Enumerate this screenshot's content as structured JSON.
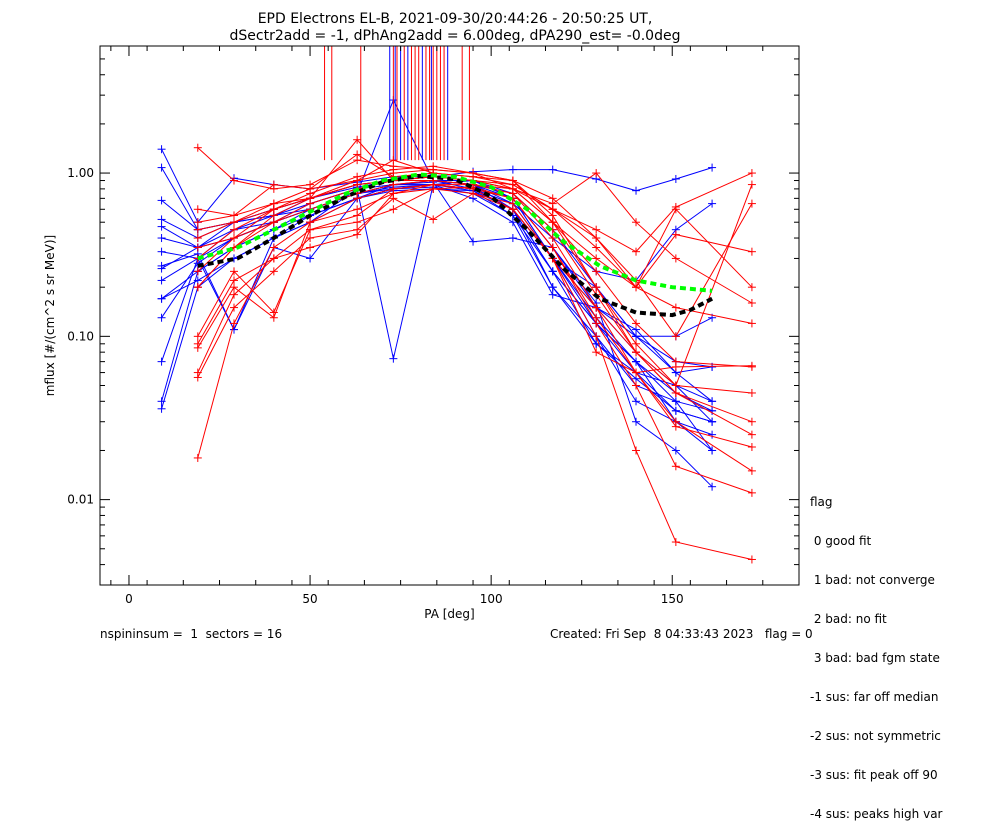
{
  "chart_data": {
    "type": "line",
    "title_lines": [
      "EPD Electrons EL-B, 2021-09-30/20:44:26 - 20:50:25 UT,",
      "dSectr2add = -1, dPhAng2add = 6.00deg, dPA290_est=  -0.0deg"
    ],
    "xlabel": "PA [deg]",
    "ylabel": "mflux [#/(cm^2 s sr MeV)]",
    "xlim": [
      -8,
      185
    ],
    "ylim": [
      0.003,
      6.0
    ],
    "yscale": "log",
    "x_ticks": [
      0,
      50,
      100,
      150
    ],
    "x_tick_labels": [
      "0",
      "50",
      "100",
      "150"
    ],
    "y_ticks": [
      0.01,
      0.1,
      1.0
    ],
    "y_tick_labels": [
      "0.01",
      "0.10",
      "1.00"
    ],
    "colors": {
      "red": "#ff0000",
      "blue": "#0000ff",
      "green": "#00ff00",
      "black": "#000000"
    },
    "series": [
      {
        "color": "#0000ff",
        "x": [
          9,
          19,
          29,
          40,
          50,
          63,
          73,
          84,
          95,
          106,
          117,
          129,
          140,
          151,
          161
        ],
        "y": [
          1.4,
          0.5,
          0.93,
          0.85,
          0.8,
          0.88,
          0.95,
          0.95,
          1.02,
          1.05,
          1.05,
          0.92,
          0.78,
          0.92,
          1.08
        ]
      },
      {
        "color": "#0000ff",
        "x": [
          9,
          19,
          29,
          40,
          50,
          63,
          73,
          84,
          95,
          106,
          117,
          129,
          140,
          151,
          161
        ],
        "y": [
          0.47,
          0.35,
          0.5,
          0.55,
          0.6,
          0.75,
          2.8,
          0.9,
          0.8,
          0.6,
          0.3,
          0.1,
          0.05,
          0.04,
          0.035
        ]
      },
      {
        "color": "#0000ff",
        "x": [
          9,
          19,
          29,
          40,
          50,
          63,
          73,
          84,
          95,
          106,
          117,
          129,
          140,
          151,
          161
        ],
        "y": [
          0.07,
          0.3,
          0.11,
          0.4,
          0.5,
          0.8,
          0.073,
          0.85,
          0.9,
          0.7,
          0.3,
          0.12,
          0.06,
          0.05,
          0.03
        ]
      },
      {
        "color": "#0000ff",
        "x": [
          9,
          19,
          29,
          40,
          50,
          63,
          73,
          84,
          95,
          106,
          117,
          129,
          140,
          151,
          161
        ],
        "y": [
          0.17,
          0.22,
          0.3,
          0.4,
          0.55,
          0.7,
          0.85,
          0.88,
          0.38,
          0.4,
          0.35,
          0.16,
          0.03,
          0.02,
          0.012
        ]
      },
      {
        "color": "#0000ff",
        "x": [
          9,
          19,
          29,
          40,
          50,
          63,
          73,
          84,
          95,
          106,
          117,
          129,
          140,
          151,
          161
        ],
        "y": [
          0.04,
          0.25,
          0.35,
          0.45,
          0.6,
          0.75,
          0.85,
          0.85,
          0.78,
          0.6,
          0.25,
          0.12,
          0.07,
          0.03,
          0.025
        ]
      },
      {
        "color": "#0000ff",
        "x": [
          9,
          19,
          29,
          40,
          50,
          63,
          73,
          84,
          95,
          106,
          117,
          129,
          140,
          151,
          161
        ],
        "y": [
          0.036,
          0.2,
          0.3,
          0.4,
          0.5,
          0.7,
          0.8,
          0.82,
          0.75,
          0.55,
          0.2,
          0.09,
          0.055,
          0.035,
          0.03
        ]
      },
      {
        "color": "#0000ff",
        "x": [
          9,
          19,
          29,
          40,
          50,
          63,
          73,
          84,
          95,
          106,
          117,
          129,
          140,
          151,
          161
        ],
        "y": [
          0.13,
          0.28,
          0.4,
          0.5,
          0.65,
          0.8,
          0.9,
          0.9,
          0.85,
          0.6,
          0.2,
          0.1,
          0.04,
          0.03,
          0.02
        ]
      },
      {
        "color": "#0000ff",
        "x": [
          9,
          19,
          29,
          40,
          50,
          63,
          73,
          84,
          95,
          106,
          117,
          129,
          140,
          151,
          161
        ],
        "y": [
          0.68,
          0.45,
          0.5,
          0.55,
          0.7,
          0.82,
          0.9,
          0.9,
          0.9,
          0.7,
          0.35,
          0.15,
          0.08,
          0.05,
          0.04
        ]
      },
      {
        "color": "#0000ff",
        "x": [
          9,
          19,
          29,
          40,
          50,
          63,
          73,
          84,
          95,
          106,
          117,
          129,
          140,
          151,
          161
        ],
        "y": [
          0.33,
          0.3,
          0.45,
          0.5,
          0.6,
          0.75,
          0.8,
          0.85,
          0.8,
          0.6,
          0.3,
          0.15,
          0.1,
          0.06,
          0.04
        ]
      },
      {
        "color": "#0000ff",
        "x": [
          9,
          19,
          29,
          40,
          50,
          63,
          73,
          84,
          95,
          106,
          117,
          129,
          140,
          151,
          161
        ],
        "y": [
          0.27,
          0.32,
          0.11,
          0.35,
          0.3,
          0.7,
          0.8,
          0.85,
          0.7,
          0.5,
          0.18,
          0.15,
          0.11,
          0.06,
          0.065
        ]
      },
      {
        "color": "#0000ff",
        "x": [
          9,
          19,
          29,
          40,
          50,
          63,
          73,
          84,
          95,
          106,
          117,
          129,
          140,
          151,
          161
        ],
        "y": [
          0.26,
          0.35,
          0.45,
          0.55,
          0.65,
          0.8,
          0.85,
          0.85,
          0.8,
          0.65,
          0.4,
          0.25,
          0.22,
          0.45,
          0.65
        ]
      },
      {
        "color": "#0000ff",
        "x": [
          9,
          19,
          29,
          40,
          50,
          63,
          73,
          84,
          95,
          106,
          117,
          129,
          140,
          151,
          161
        ],
        "y": [
          0.52,
          0.4,
          0.5,
          0.6,
          0.7,
          0.85,
          0.9,
          0.9,
          0.85,
          0.7,
          0.3,
          0.2,
          0.1,
          0.1,
          0.13
        ]
      },
      {
        "color": "#0000ff",
        "x": [
          9,
          19,
          29,
          40,
          50,
          63,
          73,
          84,
          95,
          106,
          117,
          129,
          140,
          151,
          161
        ],
        "y": [
          0.17,
          0.25,
          0.35,
          0.45,
          0.55,
          0.7,
          0.78,
          0.8,
          0.78,
          0.55,
          0.25,
          0.09,
          0.06,
          0.035,
          0.03
        ]
      },
      {
        "color": "#0000ff",
        "x": [
          9,
          19,
          29,
          40,
          50,
          63,
          73,
          84,
          95,
          106,
          117,
          129,
          140,
          151,
          161
        ],
        "y": [
          1.08,
          0.45,
          0.5,
          0.6,
          0.7,
          0.85,
          0.9,
          0.95,
          0.9,
          0.75,
          0.45,
          0.2,
          0.1,
          0.07,
          0.065
        ]
      },
      {
        "color": "#0000ff",
        "x": [
          9,
          19,
          29,
          40,
          50,
          63,
          73,
          84,
          95,
          106,
          117,
          129,
          140,
          151,
          161
        ],
        "y": [
          0.4,
          0.35,
          0.4,
          0.5,
          0.6,
          0.75,
          0.85,
          0.9,
          0.85,
          0.65,
          0.3,
          0.13,
          0.07,
          0.04,
          0.02
        ]
      },
      {
        "color": "#0000ff",
        "x": [
          9,
          19,
          29,
          40,
          50,
          63,
          73,
          84,
          95,
          106,
          117,
          129,
          140,
          151,
          161
        ],
        "y": [
          0.22,
          0.3,
          0.4,
          0.5,
          0.6,
          0.75,
          0.82,
          0.85,
          0.8,
          0.6,
          0.25,
          0.12,
          0.07,
          0.045,
          0.035
        ]
      },
      {
        "color": "#ff0000",
        "x": [
          19,
          29,
          40,
          50,
          63,
          73,
          84,
          95,
          106,
          117,
          129,
          140,
          151,
          172
        ],
        "y": [
          1.43,
          0.9,
          0.8,
          0.85,
          1.2,
          1.1,
          1.05,
          1.0,
          0.9,
          0.5,
          0.2,
          0.09,
          0.05,
          0.85
        ]
      },
      {
        "color": "#ff0000",
        "x": [
          19,
          29,
          40,
          50,
          63,
          73,
          84,
          95,
          106,
          117,
          129,
          140,
          151,
          172
        ],
        "y": [
          0.018,
          0.12,
          0.35,
          0.5,
          0.7,
          0.8,
          0.85,
          0.8,
          0.6,
          0.3,
          0.15,
          0.08,
          0.05,
          0.045
        ]
      },
      {
        "color": "#ff0000",
        "x": [
          19,
          29,
          40,
          50,
          63,
          73,
          84,
          95,
          106,
          117,
          129,
          140,
          151,
          172
        ],
        "y": [
          0.056,
          0.15,
          0.25,
          0.4,
          0.45,
          0.7,
          0.52,
          0.75,
          0.6,
          0.3,
          0.1,
          0.02,
          0.0055,
          0.0043
        ]
      },
      {
        "color": "#ff0000",
        "x": [
          19,
          29,
          40,
          50,
          63,
          73,
          84,
          95,
          106,
          117,
          129,
          140,
          151,
          172
        ],
        "y": [
          0.085,
          0.2,
          0.13,
          0.5,
          0.6,
          0.75,
          0.85,
          0.8,
          0.7,
          0.35,
          0.12,
          0.05,
          0.016,
          0.011
        ]
      },
      {
        "color": "#ff0000",
        "x": [
          19,
          29,
          40,
          50,
          63,
          73,
          84,
          95,
          106,
          117,
          129,
          140,
          151,
          172
        ],
        "y": [
          0.2,
          0.35,
          0.55,
          0.7,
          1.6,
          0.9,
          0.95,
          0.9,
          0.8,
          0.5,
          0.25,
          0.12,
          0.07,
          0.065
        ]
      },
      {
        "color": "#ff0000",
        "x": [
          19,
          29,
          40,
          50,
          63,
          73,
          84,
          95,
          106,
          117,
          129,
          140,
          151,
          172
        ],
        "y": [
          0.3,
          0.45,
          0.6,
          0.7,
          0.85,
          0.9,
          0.95,
          0.9,
          0.85,
          0.6,
          0.4,
          0.2,
          0.6,
          0.2
        ]
      },
      {
        "color": "#ff0000",
        "x": [
          19,
          29,
          40,
          50,
          63,
          73,
          84,
          95,
          106,
          117,
          129,
          140,
          151,
          172
        ],
        "y": [
          0.5,
          0.55,
          0.85,
          0.8,
          0.9,
          1.0,
          1.05,
          1.0,
          0.9,
          0.55,
          0.2,
          0.08,
          0.045,
          0.025
        ]
      },
      {
        "color": "#ff0000",
        "x": [
          19,
          29,
          40,
          50,
          63,
          73,
          84,
          95,
          106,
          117,
          129,
          140,
          151,
          172
        ],
        "y": [
          0.35,
          0.4,
          0.5,
          0.65,
          0.8,
          0.9,
          0.95,
          0.9,
          0.8,
          0.5,
          0.3,
          0.2,
          0.15,
          0.12
        ]
      },
      {
        "color": "#ff0000",
        "x": [
          19,
          29,
          40,
          50,
          63,
          73,
          84,
          95,
          106,
          117,
          129,
          140,
          151,
          172
        ],
        "y": [
          0.1,
          0.25,
          0.14,
          0.45,
          0.55,
          0.8,
          0.85,
          0.85,
          0.75,
          0.4,
          0.15,
          0.06,
          0.03,
          0.015
        ]
      },
      {
        "color": "#ff0000",
        "x": [
          19,
          29,
          40,
          50,
          63,
          73,
          84,
          95,
          106,
          117,
          129,
          140,
          151,
          172
        ],
        "y": [
          0.06,
          0.18,
          0.3,
          0.35,
          0.42,
          0.75,
          0.8,
          0.82,
          0.7,
          0.35,
          0.13,
          0.06,
          0.028,
          0.021
        ]
      },
      {
        "color": "#ff0000",
        "x": [
          19,
          29,
          40,
          50,
          63,
          73,
          84,
          95,
          106,
          117,
          129,
          140,
          151,
          172
        ],
        "y": [
          0.25,
          0.4,
          0.6,
          0.75,
          0.95,
          1.05,
          1.1,
          1.0,
          0.8,
          0.6,
          0.45,
          0.33,
          0.62,
          1.0
        ]
      },
      {
        "color": "#ff0000",
        "x": [
          19,
          29,
          40,
          50,
          63,
          73,
          84,
          95,
          106,
          117,
          129,
          140,
          151,
          172
        ],
        "y": [
          0.4,
          0.5,
          0.65,
          0.8,
          1.3,
          0.95,
          1.0,
          0.95,
          0.85,
          0.6,
          0.35,
          0.2,
          0.42,
          0.33
        ]
      },
      {
        "color": "#ff0000",
        "x": [
          19,
          29,
          40,
          50,
          63,
          73,
          84,
          95,
          106,
          117,
          129,
          140,
          151,
          172
        ],
        "y": [
          0.09,
          0.22,
          0.3,
          0.45,
          0.5,
          0.6,
          0.8,
          0.75,
          0.65,
          0.3,
          0.08,
          0.06,
          0.065,
          0.066
        ]
      },
      {
        "color": "#ff0000",
        "x": [
          19,
          29,
          40,
          50,
          63,
          73,
          84,
          95,
          106,
          117,
          129,
          140,
          151,
          172
        ],
        "y": [
          0.6,
          0.55,
          0.65,
          0.7,
          0.85,
          0.9,
          0.9,
          0.85,
          0.8,
          0.65,
          1.0,
          0.5,
          0.3,
          0.16
        ]
      },
      {
        "color": "#ff0000",
        "x": [
          19,
          29,
          40,
          50,
          63,
          73,
          84,
          95,
          106,
          117,
          129,
          140,
          151,
          172
        ],
        "y": [
          0.45,
          0.5,
          0.6,
          0.7,
          0.9,
          1.2,
          1.0,
          0.95,
          0.9,
          0.7,
          0.4,
          0.22,
          0.1,
          0.65
        ]
      },
      {
        "color": "#ff0000",
        "x": [
          19,
          29,
          40,
          50,
          63,
          73,
          84,
          95,
          106,
          117,
          129,
          140,
          151,
          172
        ],
        "y": [
          0.2,
          0.35,
          0.5,
          0.6,
          0.75,
          0.85,
          0.9,
          0.85,
          0.75,
          0.45,
          0.18,
          0.08,
          0.045,
          0.03
        ]
      }
    ],
    "fits": [
      {
        "color": "#000000",
        "style": "dashed",
        "x": [
          19,
          30,
          40,
          50,
          60,
          70,
          80,
          90,
          100,
          110,
          120,
          130,
          140,
          150,
          155,
          161
        ],
        "y": [
          0.27,
          0.3,
          0.4,
          0.55,
          0.72,
          0.88,
          0.96,
          0.92,
          0.72,
          0.45,
          0.26,
          0.17,
          0.14,
          0.135,
          0.145,
          0.17
        ]
      },
      {
        "color": "#00ff00",
        "style": "dashed",
        "x": [
          19,
          30,
          40,
          50,
          60,
          70,
          80,
          90,
          100,
          110,
          120,
          130,
          140,
          150,
          161
        ],
        "y": [
          0.3,
          0.35,
          0.45,
          0.58,
          0.75,
          0.9,
          0.98,
          0.95,
          0.82,
          0.6,
          0.38,
          0.27,
          0.22,
          0.2,
          0.19
        ]
      }
    ],
    "vertical_markers": {
      "red_x": [
        54,
        56,
        64,
        73,
        74,
        76,
        78,
        79,
        80,
        82,
        83,
        84,
        85,
        86,
        87,
        92,
        94
      ],
      "blue_x": [
        72,
        73.5,
        75,
        77,
        81,
        83.5,
        88
      ],
      "y_bottom": 1.2
    },
    "legend": {
      "title": "flag",
      "entries": [
        " 0 good fit",
        " 1 bad: not converge",
        " 2 bad: no fit",
        " 3 bad: bad fgm state",
        "-1 sus: far off median",
        "-2 sus: not symmetric",
        "-3 sus: fit peak off 90",
        "-4 sus: peaks high var"
      ]
    }
  },
  "footer": {
    "left": "nspininsum =  1  sectors = 16",
    "right": "Created: Fri Sep  8 04:33:43 2023   flag = 0"
  }
}
